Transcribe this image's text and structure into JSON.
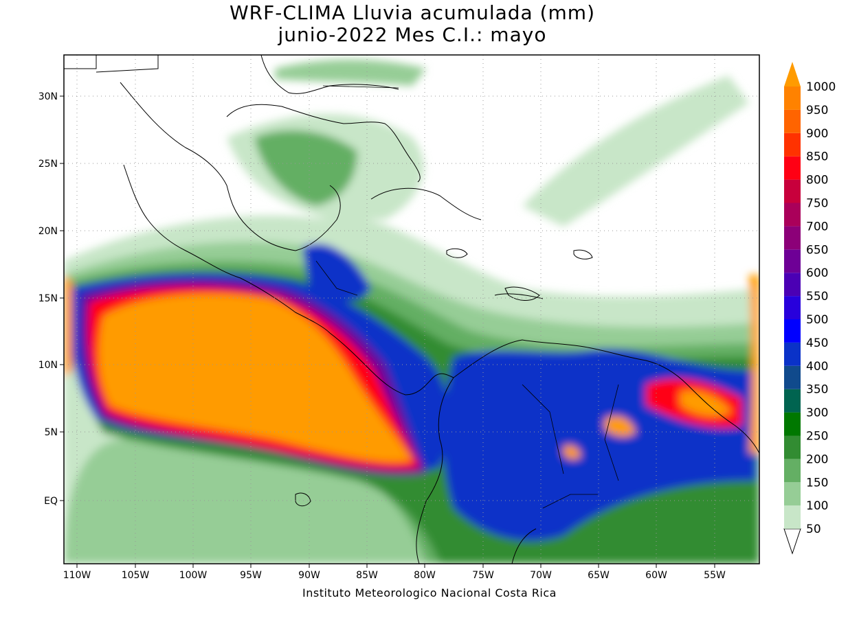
{
  "map": {
    "title_line1": "WRF-CLIMA Lluvia acumulada (mm)",
    "title_line2": "junio-2022 Mes C.I.: mayo",
    "credit": "Instituto Meteorologico Nacional Costa Rica",
    "lon_ticks": [
      "110W",
      "105W",
      "100W",
      "95W",
      "90W",
      "85W",
      "80W",
      "75W",
      "70W",
      "65W",
      "60W",
      "55W"
    ],
    "lat_ticks": [
      "30N",
      "25N",
      "20N",
      "15N",
      "10N",
      "5N",
      "EQ"
    ],
    "lon_range": [
      -111,
      -51
    ],
    "lat_range": [
      -5,
      33
    ]
  },
  "colorbar": {
    "levels": [
      "50",
      "100",
      "150",
      "200",
      "250",
      "300",
      "350",
      "400",
      "450",
      "500",
      "550",
      "600",
      "650",
      "700",
      "750",
      "800",
      "850",
      "900",
      "950",
      "1000"
    ],
    "colors": [
      "#c8e6c8",
      "#96cd96",
      "#64af64",
      "#328c32",
      "#007800",
      "#006450",
      "#104a8c",
      "#0a32c8",
      "#0000ff",
      "#2800dc",
      "#4b00b4",
      "#6e0096",
      "#8c0078",
      "#aa005a",
      "#c8003c",
      "#ff0014",
      "#ff3200",
      "#ff6400",
      "#ff8200",
      "#ff9b00"
    ],
    "under_color": "#ffffff"
  },
  "colors": {
    "land_outline": "#000000",
    "frame": "#000000",
    "grid": "#999999"
  }
}
